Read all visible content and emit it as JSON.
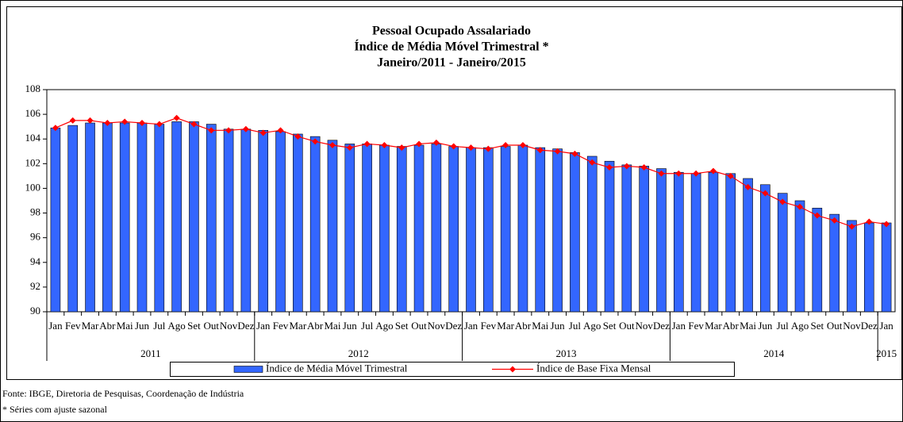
{
  "chart_data": {
    "type": "bar_line",
    "title": [
      "Pessoal Ocupado Assalariado",
      "Índice de Média Móvel Trimestral *",
      "Janeiro/2011 - Janeiro/2015"
    ],
    "categories": [
      "Jan",
      "Fev",
      "Mar",
      "Abr",
      "Mai",
      "Jun",
      "Jul",
      "Ago",
      "Set",
      "Out",
      "Nov",
      "Dez",
      "Jan",
      "Fev",
      "Mar",
      "Abr",
      "Mai",
      "Jun",
      "Jul",
      "Ago",
      "Set",
      "Out",
      "Nov",
      "Dez",
      "Jan",
      "Fev",
      "Mar",
      "Abr",
      "Mai",
      "Jun",
      "Jul",
      "Ago",
      "Set",
      "Out",
      "Nov",
      "Dez",
      "Jan",
      "Fev",
      "Mar",
      "Abr",
      "Mai",
      "Jun",
      "Jul",
      "Ago",
      "Set",
      "Out",
      "Nov",
      "Dez",
      "Jan"
    ],
    "year_labels": [
      "2011",
      "2012",
      "2013",
      "2014",
      "2015"
    ],
    "series": [
      {
        "name": "Índice de Média Móvel Trimestral",
        "type": "bar",
        "color": "#3366ff",
        "values": [
          104.9,
          105.1,
          105.3,
          105.3,
          105.3,
          105.3,
          105.2,
          105.4,
          105.4,
          105.2,
          104.8,
          104.8,
          104.7,
          104.6,
          104.4,
          104.2,
          103.9,
          103.6,
          103.6,
          103.5,
          103.4,
          103.5,
          103.6,
          103.4,
          103.3,
          103.3,
          103.4,
          103.5,
          103.3,
          103.2,
          102.9,
          102.6,
          102.2,
          101.9,
          101.8,
          101.6,
          101.3,
          101.2,
          101.3,
          101.2,
          100.8,
          100.3,
          99.6,
          99.0,
          98.4,
          97.9,
          97.4,
          97.2,
          97.2
        ]
      },
      {
        "name": "Índice de Base Fixa Mensal",
        "type": "line",
        "color": "#ff0000",
        "values": [
          104.9,
          105.5,
          105.5,
          105.3,
          105.4,
          105.3,
          105.2,
          105.7,
          105.2,
          104.7,
          104.7,
          104.8,
          104.5,
          104.7,
          104.2,
          103.8,
          103.5,
          103.3,
          103.6,
          103.5,
          103.3,
          103.6,
          103.7,
          103.4,
          103.3,
          103.2,
          103.5,
          103.5,
          103.1,
          103.0,
          102.8,
          102.1,
          101.7,
          101.8,
          101.7,
          101.2,
          101.2,
          101.2,
          101.4,
          101.0,
          100.1,
          99.6,
          98.9,
          98.5,
          97.8,
          97.4,
          96.9,
          97.3,
          97.1
        ]
      }
    ],
    "ylim": [
      90,
      108
    ],
    "yticks": [
      90,
      92,
      94,
      96,
      98,
      100,
      102,
      104,
      106,
      108
    ]
  },
  "footer": {
    "source": "Fonte: IBGE, Diretoria de Pesquisas, Coordenação de Indústria",
    "note": "* Séries com ajuste sazonal"
  }
}
